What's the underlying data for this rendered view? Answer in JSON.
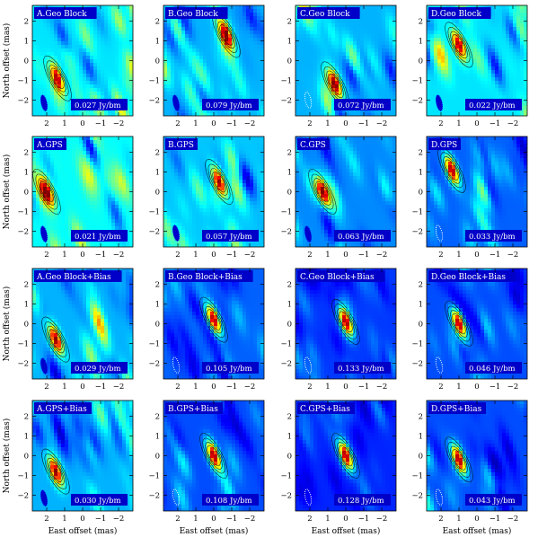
{
  "chart_data": {
    "type": "heatmap",
    "xlabel": "East offset (mas)",
    "ylabel": "North offset (mas)",
    "xlim": [
      2.8,
      -2.8
    ],
    "ylim": [
      -2.8,
      2.8
    ],
    "x_ticks": [
      "2",
      "1",
      "0",
      "−1",
      "−2"
    ],
    "y_ticks": [
      "2",
      "1",
      "0",
      "−1",
      "−2"
    ],
    "x_tick_values": [
      2,
      1,
      0,
      -1,
      -2
    ],
    "y_tick_values": [
      2,
      1,
      0,
      -1,
      -2
    ],
    "colormap": "jet",
    "panels": [
      {
        "label": "A.Geo Block",
        "peak": "0.027 Jy/bm",
        "src_x": 1.4,
        "src_y": -0.9,
        "bg": 0.35,
        "noise": 0.32,
        "beam": "filled",
        "beam_x": 2.15,
        "beam_y": -2.15
      },
      {
        "label": "B.Geo Block",
        "peak": "0.079 Jy/bm",
        "src_x": -0.7,
        "src_y": 1.3,
        "bg": 0.3,
        "noise": 0.28,
        "beam": "filled",
        "beam_x": 2.1,
        "beam_y": -2.15
      },
      {
        "label": "C.Geo Block",
        "peak": "0.072 Jy/bm",
        "src_x": 0.6,
        "src_y": -1.2,
        "bg": 0.3,
        "noise": 0.28,
        "beam": "dotted",
        "beam_x": 2.1,
        "beam_y": -2.0
      },
      {
        "label": "D.Geo Block",
        "peak": "0.022 Jy/bm",
        "src_x": 1.0,
        "src_y": 0.8,
        "bg": 0.35,
        "noise": 0.3,
        "beam": "filled",
        "beam_x": 2.1,
        "beam_y": -2.15
      },
      {
        "label": "A.GPS",
        "peak": "0.021 Jy/bm",
        "src_x": 2.0,
        "src_y": 0.0,
        "bg": 0.38,
        "noise": 0.3,
        "beam": "filled",
        "beam_x": 2.15,
        "beam_y": -2.15
      },
      {
        "label": "B.GPS",
        "peak": "0.057 Jy/bm",
        "src_x": -0.3,
        "src_y": 0.5,
        "bg": 0.32,
        "noise": 0.28,
        "beam": "filled",
        "beam_x": 2.1,
        "beam_y": -2.1
      },
      {
        "label": "C.GPS",
        "peak": "0.063 Jy/bm",
        "src_x": 1.3,
        "src_y": 0.0,
        "bg": 0.26,
        "noise": 0.25,
        "beam": "filled",
        "beam_x": 2.1,
        "beam_y": -2.15
      },
      {
        "label": "D.GPS",
        "peak": "0.033 Jy/bm",
        "src_x": 1.4,
        "src_y": 1.1,
        "bg": 0.22,
        "noise": 0.22,
        "beam": "dotted",
        "beam_x": 2.1,
        "beam_y": -2.1
      },
      {
        "label": "A.Geo Block+Bias",
        "peak": "0.029 Jy/bm",
        "src_x": 1.5,
        "src_y": -0.8,
        "bg": 0.3,
        "noise": 0.28,
        "beam": "filled",
        "beam_x": 2.15,
        "beam_y": -2.15
      },
      {
        "label": "B.Geo Block+Bias",
        "peak": "0.105 Jy/bm",
        "src_x": 0.0,
        "src_y": 0.2,
        "bg": 0.22,
        "noise": 0.2,
        "beam": "dotted",
        "beam_x": 2.1,
        "beam_y": -2.1
      },
      {
        "label": "C.Geo Block+Bias",
        "peak": "0.133 Jy/bm",
        "src_x": 0.0,
        "src_y": 0.1,
        "bg": 0.18,
        "noise": 0.15,
        "beam": "dotted",
        "beam_x": 2.1,
        "beam_y": -2.1
      },
      {
        "label": "D.Geo Block+Bias",
        "peak": "0.046 Jy/bm",
        "src_x": 1.0,
        "src_y": 0.0,
        "bg": 0.2,
        "noise": 0.18,
        "beam": "dotted",
        "beam_x": 2.1,
        "beam_y": -2.1
      },
      {
        "label": "A.GPS+Bias",
        "peak": "0.030 Jy/bm",
        "src_x": 1.5,
        "src_y": -0.8,
        "bg": 0.3,
        "noise": 0.28,
        "beam": "filled",
        "beam_x": 2.15,
        "beam_y": -2.15
      },
      {
        "label": "B.GPS+Bias",
        "peak": "0.108 Jy/bm",
        "src_x": 0.0,
        "src_y": 0.0,
        "bg": 0.2,
        "noise": 0.18,
        "beam": "dotted",
        "beam_x": 2.1,
        "beam_y": -2.1
      },
      {
        "label": "C.GPS+Bias",
        "peak": "0.128 Jy/bm",
        "src_x": 0.0,
        "src_y": 0.0,
        "bg": 0.16,
        "noise": 0.14,
        "beam": "dotted",
        "beam_x": 2.1,
        "beam_y": -2.1
      },
      {
        "label": "D.GPS+Bias",
        "peak": "0.043 Jy/bm",
        "src_x": 1.0,
        "src_y": -0.2,
        "bg": 0.2,
        "noise": 0.18,
        "beam": "dotted",
        "beam_x": 2.1,
        "beam_y": -2.1
      }
    ]
  }
}
